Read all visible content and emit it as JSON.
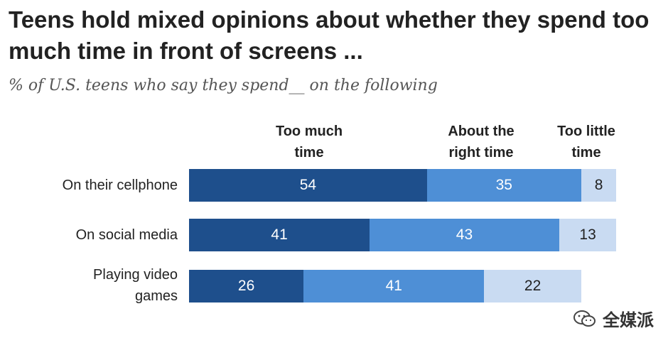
{
  "chart_data": {
    "type": "bar",
    "orientation": "horizontal",
    "stacked": true,
    "title": "Teens hold mixed opinions about whether they spend too much time in front of screens ...",
    "subtitle": "% of U.S. teens who say they spend__ on the following",
    "categories": [
      "On their cellphone",
      "On social media",
      "Playing video\ngames"
    ],
    "series": [
      {
        "name": "Too much\ntime",
        "values": [
          54,
          41,
          26
        ],
        "color": "#1e4f8c"
      },
      {
        "name": "About the\nright time",
        "values": [
          35,
          43,
          41
        ],
        "color": "#4e8fd6"
      },
      {
        "name": "Too little\ntime",
        "values": [
          8,
          13,
          22
        ],
        "color": "#c9dbf2"
      }
    ],
    "xlim": [
      0,
      100
    ]
  },
  "watermark": {
    "text": "全媒派"
  }
}
